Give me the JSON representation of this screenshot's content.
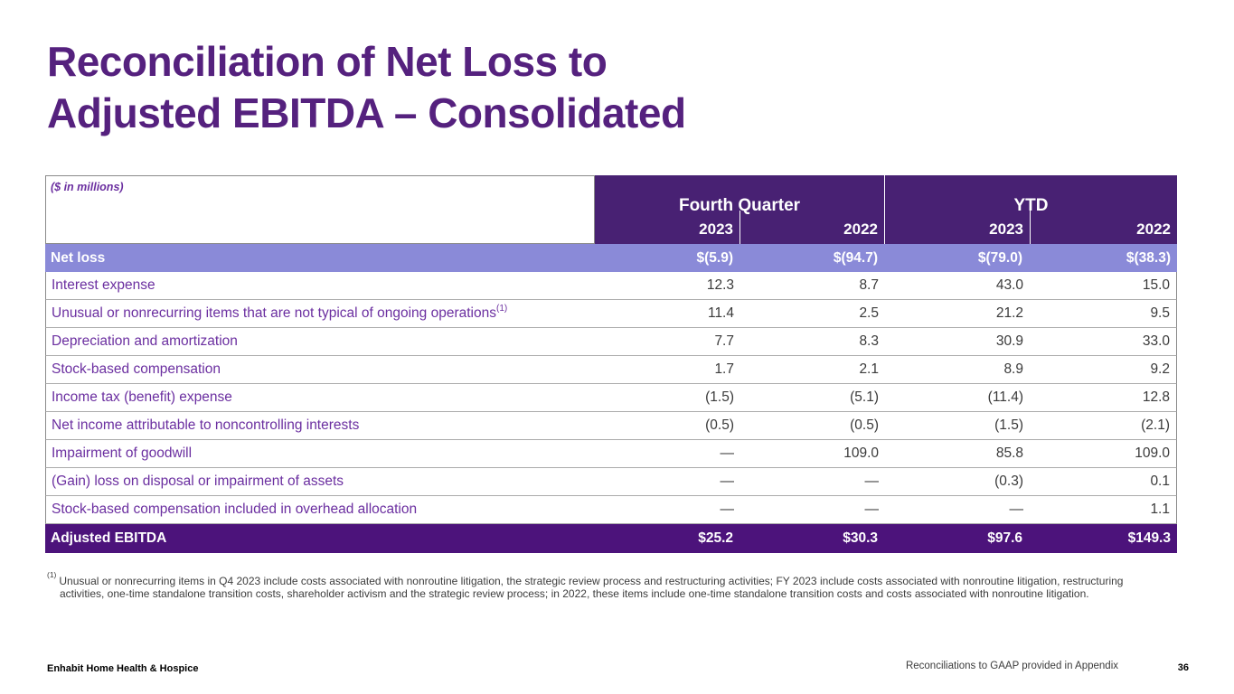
{
  "colors": {
    "title-purple": "#55217E",
    "label-purple": "#6B2FA0",
    "header-purple": "#482173",
    "netloss-purple": "#8A8AD8",
    "ebitda-purple": "#4C137B"
  },
  "title": {
    "line1": "Reconciliation of Net Loss to",
    "line2": "Adjusted EBITDA – Consolidated"
  },
  "table": {
    "units_label": "($ in millions)",
    "groups": [
      {
        "label": "Fourth Quarter",
        "years": [
          "2023",
          "2022"
        ]
      },
      {
        "label": "YTD",
        "years": [
          "2023",
          "2022"
        ]
      }
    ],
    "net_loss": {
      "label": "Net loss",
      "values": [
        "$(5.9)",
        "$(94.7)",
        "$(79.0)",
        "$(38.3)"
      ]
    },
    "rows": [
      {
        "label": "Interest expense",
        "values": [
          "12.3",
          "8.7",
          "43.0",
          "15.0"
        ]
      },
      {
        "label": "Unusual or nonrecurring items that are not typical of ongoing operations",
        "footnote_ref": "(1)",
        "values": [
          "11.4",
          "2.5",
          "21.2",
          "9.5"
        ]
      },
      {
        "label": "Depreciation and amortization",
        "values": [
          "7.7",
          "8.3",
          "30.9",
          "33.0"
        ]
      },
      {
        "label": "Stock-based compensation",
        "values": [
          "1.7",
          "2.1",
          "8.9",
          "9.2"
        ]
      },
      {
        "label": "Income tax (benefit) expense",
        "values": [
          "(1.5)",
          "(5.1)",
          "(11.4)",
          "12.8"
        ]
      },
      {
        "label": "Net income attributable to noncontrolling interests",
        "values": [
          "(0.5)",
          "(0.5)",
          "(1.5)",
          "(2.1)"
        ]
      },
      {
        "label": "Impairment of goodwill",
        "values": [
          "—",
          "109.0",
          "85.8",
          "109.0"
        ]
      },
      {
        "label": "(Gain) loss on disposal or impairment of assets",
        "values": [
          "—",
          "—",
          "(0.3)",
          "0.1"
        ]
      },
      {
        "label": "Stock-based compensation included in overhead allocation",
        "values": [
          "—",
          "—",
          "—",
          "1.1"
        ]
      }
    ],
    "total": {
      "label": "Adjusted EBITDA",
      "values": [
        "$25.2",
        "$30.3",
        "$97.6",
        "$149.3"
      ]
    }
  },
  "footnote": {
    "marker": "(1)",
    "text": "Unusual or nonrecurring items in Q4 2023 include costs associated with nonroutine litigation, the strategic review process and restructuring activities; FY 2023 include costs associated with nonroutine litigation, restructuring activities, one-time standalone transition costs, shareholder activism and the strategic review process; in 2022, these items include one-time standalone transition costs and costs associated with nonroutine litigation."
  },
  "footer": {
    "company": "Enhabit Home Health & Hospice",
    "note": "Reconciliations to GAAP provided in Appendix",
    "page": "36"
  }
}
